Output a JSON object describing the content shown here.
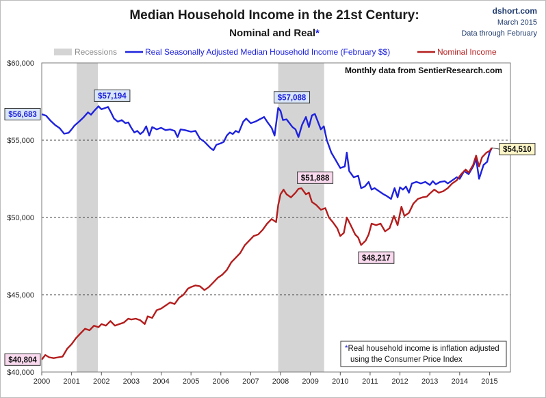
{
  "chart_data": {
    "type": "line",
    "title": "Median Household Income in the 21st Century:",
    "subtitle": "Nominal and Real",
    "subtitle_mark": "*",
    "source": [
      "dshort.com",
      "March 2015",
      "Data through February"
    ],
    "note_text": "Monthly data from SentierResearch.com",
    "footnote": [
      "*",
      "Real household  income is inflation adjusted",
      "using  the Consumer Price Index"
    ],
    "legend": {
      "recessions": "Recessions",
      "real": "Real Seasonally Adjusted Median Household Income (February $$)",
      "nominal": "Nominal Income"
    },
    "colors": {
      "real": "#1e22dd",
      "nominal": "#b41d1d",
      "recession": "#d4d4d4",
      "blue_label_bg": "#d9e6f7",
      "pink_label_bg": "#f9d9ee",
      "yellow_label_bg": "#fdf6c8",
      "title": "#1a1a1a",
      "source_text": "#1f3b6e"
    },
    "xlim": [
      2000,
      2015.7
    ],
    "ylim": [
      40000,
      60000
    ],
    "x_ticks": [
      "2000",
      "2001",
      "2002",
      "2003",
      "2004",
      "2005",
      "2006",
      "2007",
      "2008",
      "2009",
      "2010",
      "2011",
      "2012",
      "2013",
      "2014",
      "2015"
    ],
    "y_ticks": [
      "$40,000",
      "$45,000",
      "$50,000",
      "$55,000",
      "$60,000"
    ],
    "y_tick_values": [
      40000,
      45000,
      50000,
      55000,
      60000
    ],
    "recessions": [
      [
        2001.17,
        2001.88
      ],
      [
        2007.92,
        2009.46
      ]
    ],
    "series": [
      {
        "name": "real",
        "points": [
          [
            2000.0,
            56683
          ],
          [
            2000.15,
            56580
          ],
          [
            2000.3,
            56250
          ],
          [
            2000.45,
            55980
          ],
          [
            2000.6,
            55780
          ],
          [
            2000.75,
            55420
          ],
          [
            2000.9,
            55480
          ],
          [
            2001.0,
            55700
          ],
          [
            2001.1,
            55950
          ],
          [
            2001.25,
            56200
          ],
          [
            2001.4,
            56480
          ],
          [
            2001.55,
            56800
          ],
          [
            2001.65,
            56650
          ],
          [
            2001.78,
            56950
          ],
          [
            2001.9,
            57194
          ],
          [
            2002.0,
            57000
          ],
          [
            2002.12,
            57080
          ],
          [
            2002.22,
            57150
          ],
          [
            2002.32,
            56800
          ],
          [
            2002.42,
            56400
          ],
          [
            2002.55,
            56200
          ],
          [
            2002.68,
            56300
          ],
          [
            2002.8,
            56100
          ],
          [
            2002.9,
            56150
          ],
          [
            2003.0,
            55800
          ],
          [
            2003.1,
            55500
          ],
          [
            2003.2,
            55600
          ],
          [
            2003.3,
            55400
          ],
          [
            2003.4,
            55550
          ],
          [
            2003.5,
            55900
          ],
          [
            2003.6,
            55300
          ],
          [
            2003.7,
            55850
          ],
          [
            2003.85,
            55700
          ],
          [
            2004.0,
            55800
          ],
          [
            2004.15,
            55650
          ],
          [
            2004.3,
            55700
          ],
          [
            2004.45,
            55600
          ],
          [
            2004.55,
            55200
          ],
          [
            2004.65,
            55700
          ],
          [
            2004.8,
            55650
          ],
          [
            2005.0,
            55550
          ],
          [
            2005.15,
            55600
          ],
          [
            2005.3,
            55100
          ],
          [
            2005.45,
            54900
          ],
          [
            2005.55,
            54700
          ],
          [
            2005.65,
            54500
          ],
          [
            2005.75,
            54350
          ],
          [
            2005.85,
            54700
          ],
          [
            2006.0,
            54800
          ],
          [
            2006.1,
            54900
          ],
          [
            2006.2,
            55300
          ],
          [
            2006.3,
            55500
          ],
          [
            2006.4,
            55400
          ],
          [
            2006.5,
            55600
          ],
          [
            2006.6,
            55500
          ],
          [
            2006.75,
            56200
          ],
          [
            2006.85,
            56400
          ],
          [
            2007.0,
            56100
          ],
          [
            2007.15,
            56200
          ],
          [
            2007.3,
            56350
          ],
          [
            2007.45,
            56500
          ],
          [
            2007.55,
            56200
          ],
          [
            2007.7,
            55800
          ],
          [
            2007.8,
            55300
          ],
          [
            2007.92,
            57088
          ],
          [
            2008.0,
            56900
          ],
          [
            2008.08,
            56300
          ],
          [
            2008.2,
            56350
          ],
          [
            2008.3,
            56100
          ],
          [
            2008.4,
            55850
          ],
          [
            2008.5,
            55700
          ],
          [
            2008.6,
            55200
          ],
          [
            2008.72,
            56000
          ],
          [
            2008.85,
            56500
          ],
          [
            2008.95,
            55850
          ],
          [
            2009.05,
            56600
          ],
          [
            2009.15,
            56700
          ],
          [
            2009.25,
            56200
          ],
          [
            2009.35,
            55700
          ],
          [
            2009.45,
            55900
          ],
          [
            2009.55,
            55000
          ],
          [
            2009.7,
            54200
          ],
          [
            2009.85,
            53700
          ],
          [
            2010.0,
            53200
          ],
          [
            2010.15,
            53300
          ],
          [
            2010.22,
            54200
          ],
          [
            2010.3,
            53000
          ],
          [
            2010.45,
            52600
          ],
          [
            2010.6,
            52700
          ],
          [
            2010.7,
            51900
          ],
          [
            2010.82,
            52000
          ],
          [
            2010.95,
            52300
          ],
          [
            2011.05,
            51800
          ],
          [
            2011.15,
            51900
          ],
          [
            2011.3,
            51700
          ],
          [
            2011.45,
            51500
          ],
          [
            2011.55,
            51400
          ],
          [
            2011.7,
            51200
          ],
          [
            2011.82,
            51900
          ],
          [
            2011.92,
            51300
          ],
          [
            2012.0,
            51950
          ],
          [
            2012.1,
            51800
          ],
          [
            2012.2,
            52000
          ],
          [
            2012.3,
            51600
          ],
          [
            2012.4,
            52200
          ],
          [
            2012.55,
            52300
          ],
          [
            2012.7,
            52200
          ],
          [
            2012.85,
            52300
          ],
          [
            2013.0,
            52100
          ],
          [
            2013.1,
            52350
          ],
          [
            2013.2,
            52150
          ],
          [
            2013.35,
            52300
          ],
          [
            2013.5,
            52350
          ],
          [
            2013.6,
            52200
          ],
          [
            2013.75,
            52400
          ],
          [
            2013.9,
            52600
          ],
          [
            2014.0,
            52500
          ],
          [
            2014.15,
            53000
          ],
          [
            2014.3,
            52800
          ],
          [
            2014.45,
            53300
          ],
          [
            2014.55,
            53800
          ],
          [
            2014.65,
            52500
          ],
          [
            2014.8,
            53400
          ],
          [
            2014.92,
            53600
          ],
          [
            2015.0,
            54200
          ],
          [
            2015.08,
            54510
          ]
        ]
      },
      {
        "name": "nominal",
        "points": [
          [
            2000.0,
            40804
          ],
          [
            2000.12,
            41100
          ],
          [
            2000.25,
            40950
          ],
          [
            2000.4,
            40900
          ],
          [
            2000.55,
            40950
          ],
          [
            2000.7,
            41000
          ],
          [
            2000.85,
            41500
          ],
          [
            2001.0,
            41800
          ],
          [
            2001.15,
            42200
          ],
          [
            2001.3,
            42500
          ],
          [
            2001.45,
            42800
          ],
          [
            2001.6,
            42700
          ],
          [
            2001.75,
            43000
          ],
          [
            2001.9,
            42900
          ],
          [
            2002.0,
            43100
          ],
          [
            2002.15,
            43000
          ],
          [
            2002.3,
            43300
          ],
          [
            2002.45,
            43000
          ],
          [
            2002.6,
            43100
          ],
          [
            2002.75,
            43200
          ],
          [
            2002.9,
            43450
          ],
          [
            2003.0,
            43400
          ],
          [
            2003.15,
            43450
          ],
          [
            2003.3,
            43350
          ],
          [
            2003.45,
            43100
          ],
          [
            2003.55,
            43600
          ],
          [
            2003.7,
            43500
          ],
          [
            2003.85,
            44000
          ],
          [
            2004.0,
            44100
          ],
          [
            2004.15,
            44300
          ],
          [
            2004.3,
            44500
          ],
          [
            2004.45,
            44400
          ],
          [
            2004.6,
            44800
          ],
          [
            2004.75,
            45000
          ],
          [
            2004.9,
            45400
          ],
          [
            2005.0,
            45500
          ],
          [
            2005.15,
            45600
          ],
          [
            2005.3,
            45550
          ],
          [
            2005.45,
            45300
          ],
          [
            2005.6,
            45500
          ],
          [
            2005.75,
            45800
          ],
          [
            2005.9,
            46100
          ],
          [
            2006.05,
            46300
          ],
          [
            2006.2,
            46600
          ],
          [
            2006.35,
            47100
          ],
          [
            2006.5,
            47400
          ],
          [
            2006.65,
            47700
          ],
          [
            2006.8,
            48200
          ],
          [
            2006.95,
            48500
          ],
          [
            2007.1,
            48800
          ],
          [
            2007.25,
            48900
          ],
          [
            2007.4,
            49200
          ],
          [
            2007.55,
            49600
          ],
          [
            2007.7,
            49900
          ],
          [
            2007.85,
            49700
          ],
          [
            2007.92,
            50800
          ],
          [
            2008.0,
            51500
          ],
          [
            2008.1,
            51800
          ],
          [
            2008.2,
            51500
          ],
          [
            2008.35,
            51300
          ],
          [
            2008.5,
            51600
          ],
          [
            2008.6,
            51850
          ],
          [
            2008.7,
            51888
          ],
          [
            2008.85,
            51500
          ],
          [
            2008.95,
            51600
          ],
          [
            2009.05,
            51000
          ],
          [
            2009.2,
            50800
          ],
          [
            2009.35,
            50500
          ],
          [
            2009.5,
            50600
          ],
          [
            2009.62,
            50000
          ],
          [
            2009.75,
            49700
          ],
          [
            2009.9,
            49300
          ],
          [
            2010.0,
            48800
          ],
          [
            2010.12,
            49000
          ],
          [
            2010.22,
            50000
          ],
          [
            2010.35,
            49500
          ],
          [
            2010.5,
            48900
          ],
          [
            2010.6,
            48700
          ],
          [
            2010.7,
            48217
          ],
          [
            2010.85,
            48500
          ],
          [
            2010.95,
            48900
          ],
          [
            2011.05,
            49600
          ],
          [
            2011.2,
            49500
          ],
          [
            2011.35,
            49600
          ],
          [
            2011.5,
            49100
          ],
          [
            2011.65,
            49300
          ],
          [
            2011.8,
            50100
          ],
          [
            2011.92,
            49500
          ],
          [
            2012.05,
            50700
          ],
          [
            2012.15,
            50100
          ],
          [
            2012.3,
            50300
          ],
          [
            2012.45,
            50900
          ],
          [
            2012.6,
            51200
          ],
          [
            2012.75,
            51300
          ],
          [
            2012.9,
            51350
          ],
          [
            2013.0,
            51550
          ],
          [
            2013.15,
            51800
          ],
          [
            2013.3,
            51600
          ],
          [
            2013.45,
            51700
          ],
          [
            2013.6,
            51900
          ],
          [
            2013.75,
            52200
          ],
          [
            2013.9,
            52400
          ],
          [
            2014.05,
            52800
          ],
          [
            2014.2,
            53100
          ],
          [
            2014.3,
            52900
          ],
          [
            2014.45,
            53400
          ],
          [
            2014.55,
            54000
          ],
          [
            2014.65,
            53300
          ],
          [
            2014.75,
            53900
          ],
          [
            2014.9,
            54200
          ],
          [
            2015.0,
            54300
          ],
          [
            2015.08,
            54510
          ]
        ]
      }
    ],
    "callouts": [
      {
        "text": "$56,683",
        "style": "blue",
        "x": 2000.0,
        "y": 56683,
        "side": "left-edge"
      },
      {
        "text": "$57,194",
        "style": "blue",
        "x": 2001.9,
        "y": 57194,
        "side": "above"
      },
      {
        "text": "$57,088",
        "style": "blue",
        "x": 2007.92,
        "y": 57088,
        "side": "above"
      },
      {
        "text": "$54,510",
        "style": "yellow",
        "x": 2015.08,
        "y": 54510,
        "side": "right"
      },
      {
        "text": "$51,888",
        "style": "pink",
        "x": 2008.7,
        "y": 51888,
        "side": "above"
      },
      {
        "text": "$48,217",
        "style": "pink",
        "x": 2010.7,
        "y": 48217,
        "side": "below"
      },
      {
        "text": "$40,804",
        "style": "pink",
        "x": 2000.0,
        "y": 40804,
        "side": "left-edge"
      }
    ]
  }
}
